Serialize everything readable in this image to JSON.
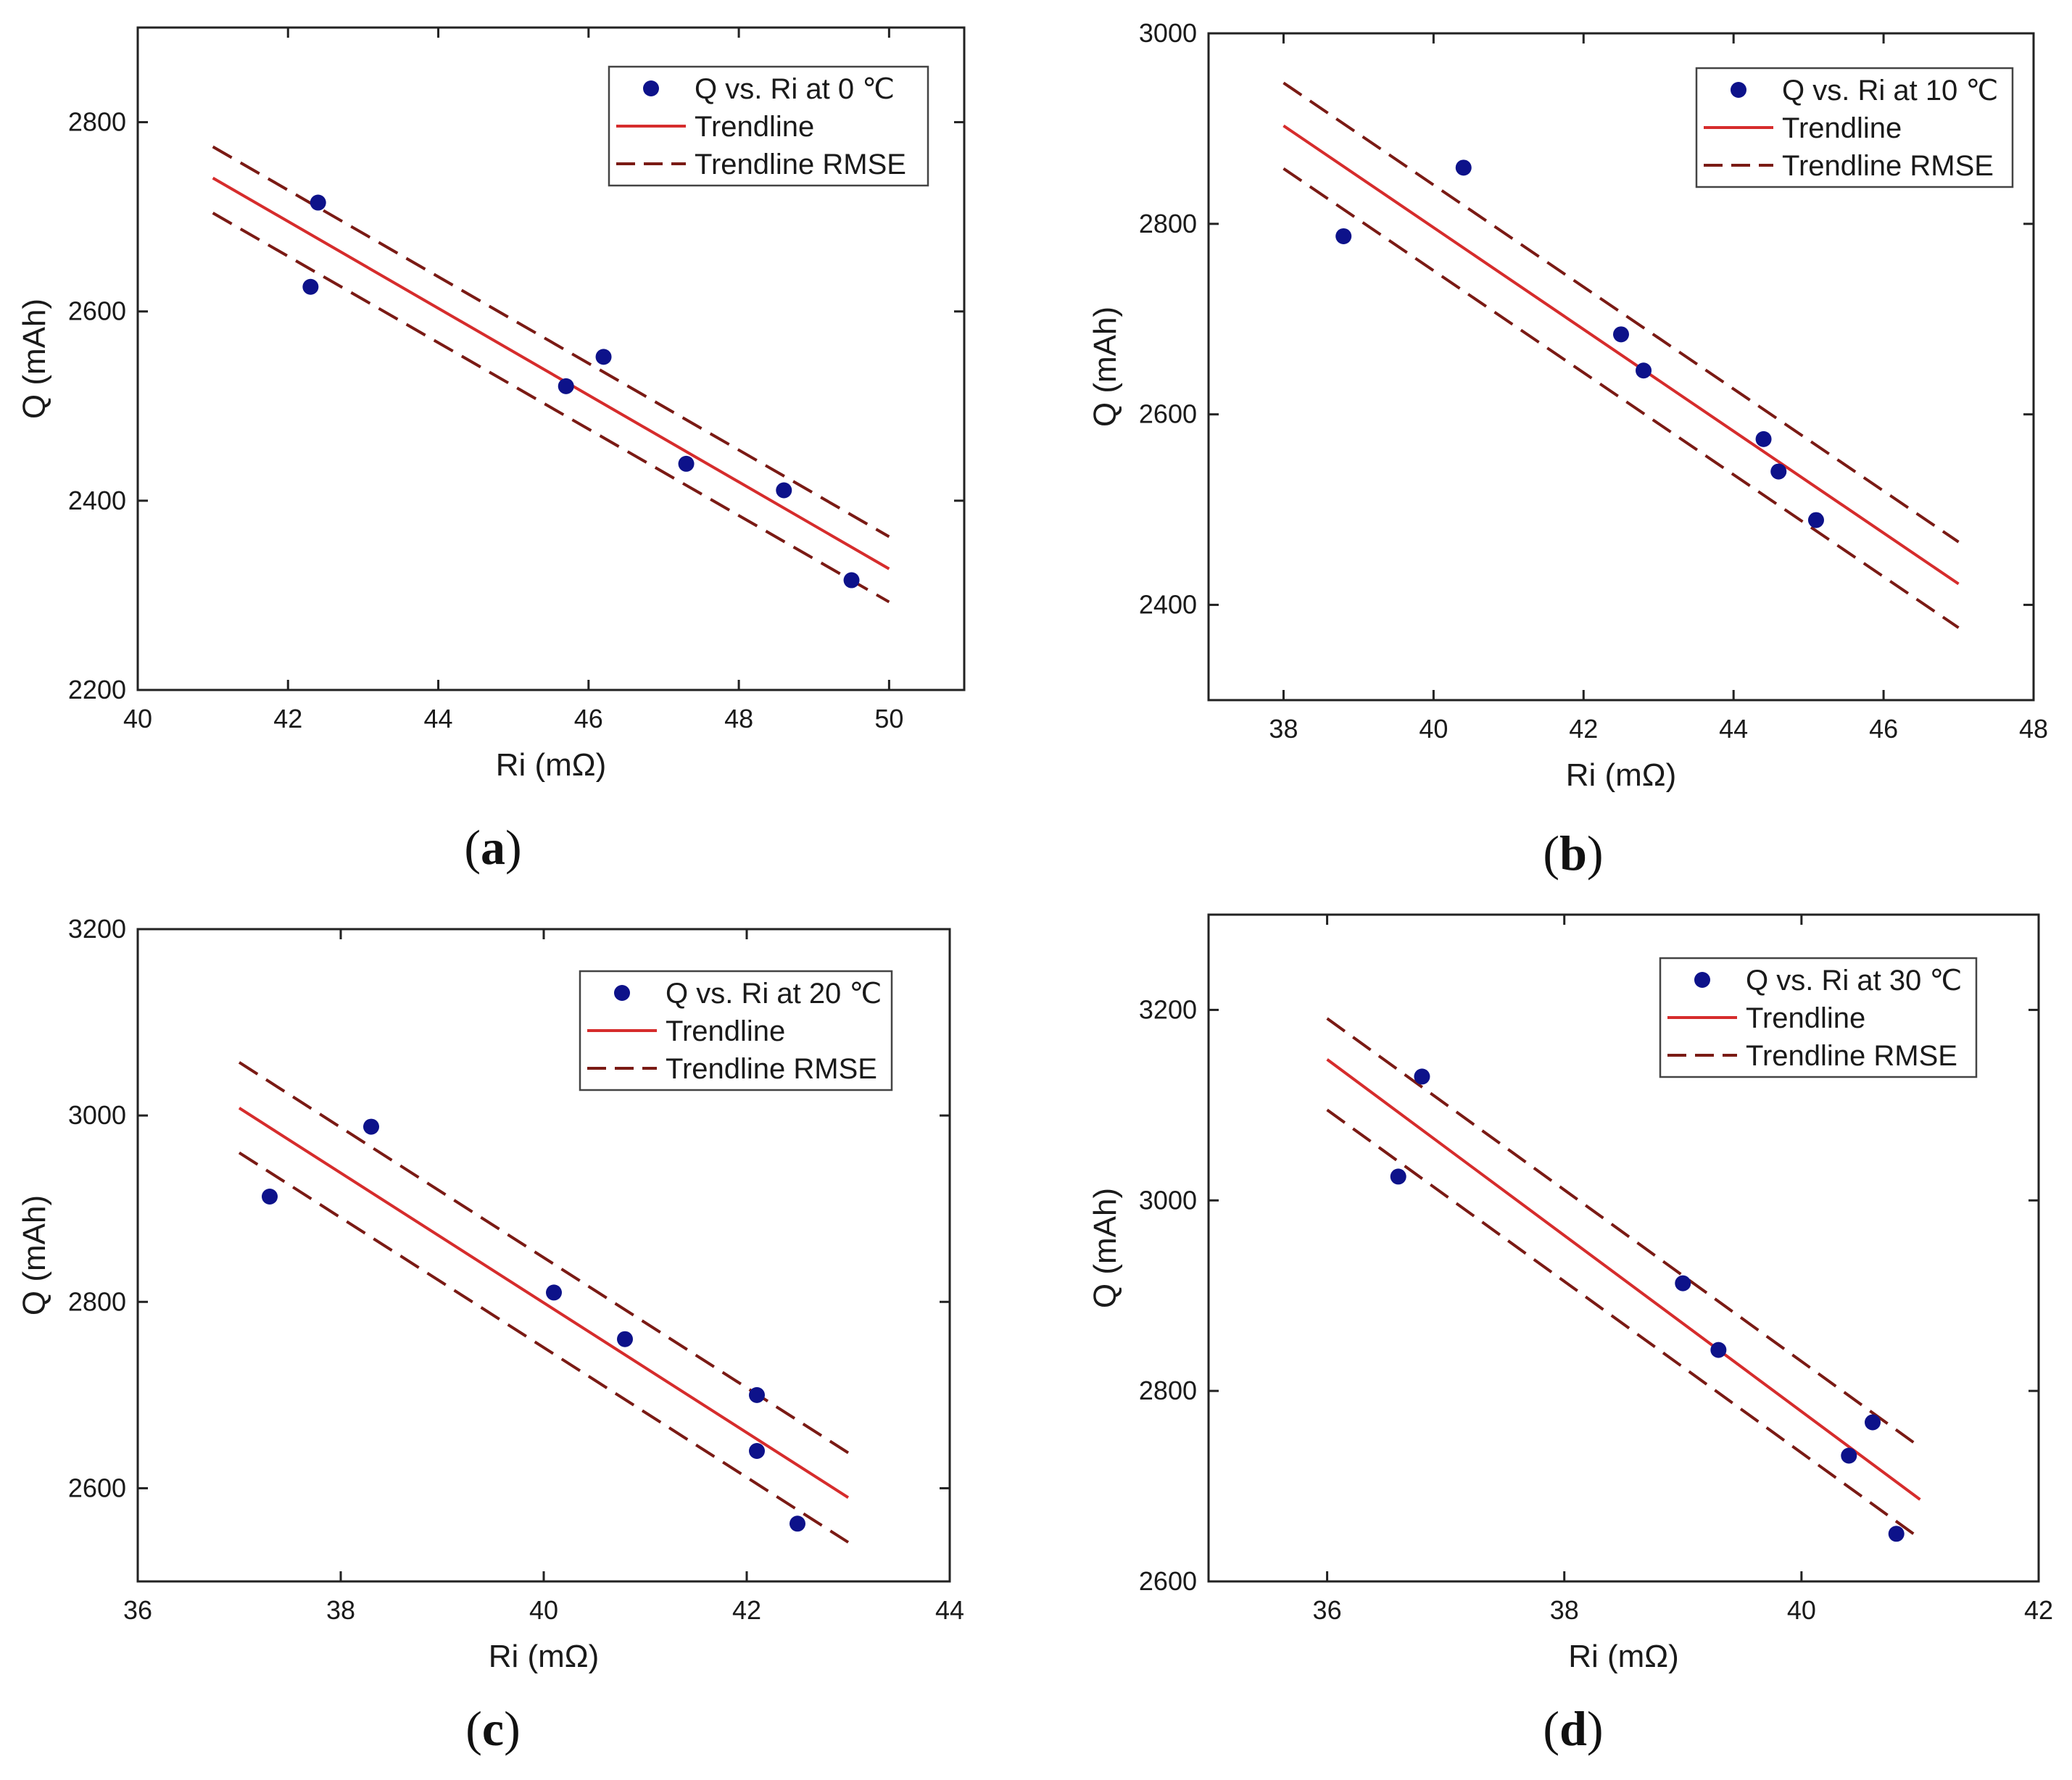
{
  "colors": {
    "points": "#0d128a",
    "trendline": "#d62c2c",
    "rmse": "#7a1a14"
  },
  "chart_data": [
    {
      "type": "scatter",
      "caption": "a",
      "xlabel": "Ri (mΩ)",
      "ylabel": "Q (mAh)",
      "xlim": [
        40,
        51
      ],
      "ylim": [
        2200,
        2900
      ],
      "xticks": [
        40,
        42,
        44,
        46,
        48,
        50
      ],
      "yticks": [
        2200,
        2400,
        2600,
        2800
      ],
      "legend": {
        "points": "Q vs. Ri at 0 ℃",
        "trend": "Trendline",
        "rmse": "Trendline RMSE"
      },
      "points": [
        [
          42.3,
          2626
        ],
        [
          42.4,
          2715
        ],
        [
          45.7,
          2521
        ],
        [
          46.2,
          2552
        ],
        [
          47.3,
          2439
        ],
        [
          48.6,
          2411
        ],
        [
          49.5,
          2316
        ]
      ],
      "trendline": [
        [
          41,
          2741
        ],
        [
          50,
          2328
        ]
      ],
      "rmse_upper": [
        [
          41,
          2774
        ],
        [
          50,
          2362
        ]
      ],
      "rmse_lower": [
        [
          41,
          2704
        ],
        [
          50,
          2293
        ]
      ]
    },
    {
      "type": "scatter",
      "caption": "b",
      "xlabel": "Ri (mΩ)",
      "ylabel": "Q (mAh)",
      "xlim": [
        37,
        48
      ],
      "ylim": [
        2300,
        3000
      ],
      "xticks": [
        38,
        40,
        42,
        44,
        46,
        48
      ],
      "yticks": [
        2400,
        2600,
        2800,
        3000
      ],
      "legend": {
        "points": "Q vs. Ri at 10 ℃",
        "trend": "Trendline",
        "rmse": "Trendline RMSE"
      },
      "points": [
        [
          38.8,
          2787
        ],
        [
          40.4,
          2859
        ],
        [
          42.5,
          2684
        ],
        [
          42.8,
          2646
        ],
        [
          44.4,
          2574
        ],
        [
          44.6,
          2540
        ],
        [
          45.1,
          2489
        ]
      ],
      "trendline": [
        [
          38,
          2903
        ],
        [
          47,
          2422
        ]
      ],
      "rmse_upper": [
        [
          38,
          2948
        ],
        [
          47,
          2466
        ]
      ],
      "rmse_lower": [
        [
          38,
          2858
        ],
        [
          47,
          2376
        ]
      ]
    },
    {
      "type": "scatter",
      "caption": "c",
      "xlabel": "Ri (mΩ)",
      "ylabel": "Q (mAh)",
      "xlim": [
        36,
        44
      ],
      "ylim": [
        2500,
        3200
      ],
      "xticks": [
        36,
        38,
        40,
        42,
        44
      ],
      "yticks": [
        2600,
        2800,
        3000,
        3200
      ],
      "legend": {
        "points": "Q vs. Ri at 20 ℃",
        "trend": "Trendline",
        "rmse": "Trendline RMSE"
      },
      "points": [
        [
          37.3,
          2913
        ],
        [
          38.3,
          2988
        ],
        [
          40.1,
          2810
        ],
        [
          40.8,
          2760
        ],
        [
          42.1,
          2700
        ],
        [
          42.1,
          2640
        ],
        [
          42.5,
          2562
        ]
      ],
      "trendline": [
        [
          37,
          3008
        ],
        [
          43,
          2590
        ]
      ],
      "rmse_upper": [
        [
          37,
          3057
        ],
        [
          43,
          2638
        ]
      ],
      "rmse_lower": [
        [
          37,
          2960
        ],
        [
          43,
          2542
        ]
      ]
    },
    {
      "type": "scatter",
      "caption": "d",
      "xlabel": "Ri (mΩ)",
      "ylabel": "Q (mAh)",
      "xlim": [
        35,
        42
      ],
      "ylim": [
        2600,
        3300
      ],
      "xticks": [
        36,
        38,
        40,
        42
      ],
      "yticks": [
        2600,
        2800,
        3000,
        3200
      ],
      "legend": {
        "points": "Q vs. Ri at 30 ℃",
        "trend": "Trendline",
        "rmse": "Trendline RMSE"
      },
      "points": [
        [
          36.6,
          3025
        ],
        [
          36.8,
          3130
        ],
        [
          39.0,
          2913
        ],
        [
          39.3,
          2843
        ],
        [
          40.4,
          2732
        ],
        [
          40.6,
          2767
        ],
        [
          40.8,
          2650
        ]
      ],
      "trendline": [
        [
          36,
          3148
        ],
        [
          41,
          2686
        ]
      ],
      "rmse_upper": [
        [
          36,
          3191
        ],
        [
          41,
          2741
        ]
      ],
      "rmse_lower": [
        [
          36,
          3095
        ],
        [
          41,
          2645
        ]
      ]
    }
  ]
}
